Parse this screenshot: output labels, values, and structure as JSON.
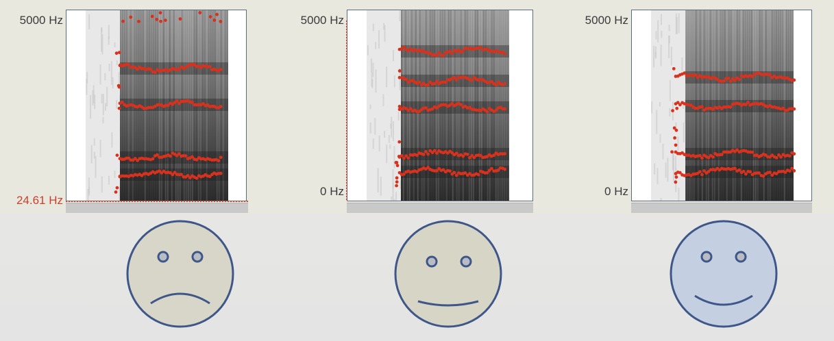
{
  "panels": [
    {
      "top_label": "5000 Hz",
      "bottom_label": "24.61 Hz",
      "bottom_label_color": "#c8402a",
      "mood": "sad"
    },
    {
      "top_label": "5000 Hz",
      "bottom_label": "0 Hz",
      "bottom_label_color": "#3a3a3a",
      "mood": "neutral"
    },
    {
      "top_label": "5000 Hz",
      "bottom_label": "0 Hz",
      "bottom_label_color": "#3a3a3a",
      "mood": "happy"
    }
  ],
  "colors": {
    "formant_dots": "#d8321e",
    "face_stroke": "#3f5688",
    "face_fill_sad": "#d8d6c8",
    "face_fill_neutral": "#d6d5c6",
    "face_fill_happy": "#c4d0e2"
  },
  "icons": [
    "sad-face-icon",
    "neutral-face-icon",
    "happy-face-icon"
  ]
}
